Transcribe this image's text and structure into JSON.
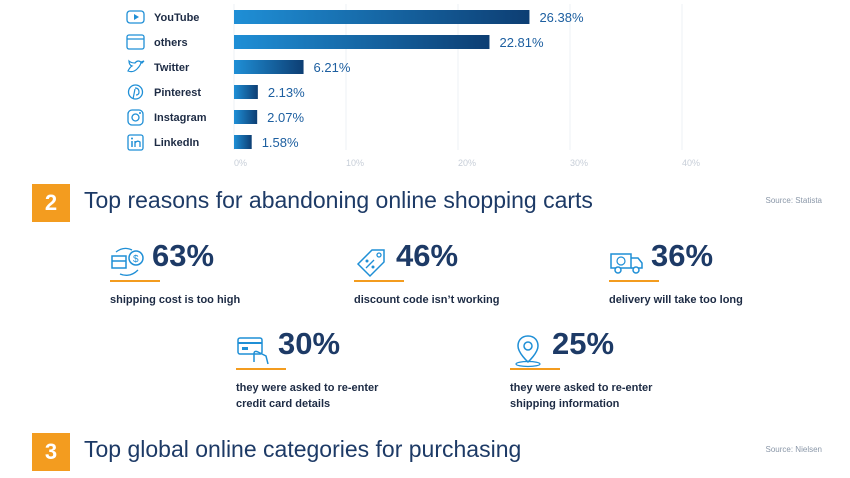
{
  "chart_data": {
    "type": "bar",
    "orientation": "horizontal",
    "categories": [
      "YouTube",
      "others",
      "Twitter",
      "Pinterest",
      "Instagram",
      "LinkedIn"
    ],
    "values": [
      26.38,
      22.81,
      6.21,
      2.13,
      2.07,
      1.58
    ],
    "value_labels": [
      "26.38%",
      "22.81%",
      "6.21%",
      "2.13%",
      "2.07%",
      "1.58%"
    ],
    "icons": [
      "youtube-icon",
      "others-icon",
      "twitter-icon",
      "pinterest-icon",
      "instagram-icon",
      "linkedin-icon"
    ],
    "xticks": [
      0,
      10,
      20,
      30,
      40
    ],
    "xtick_labels": [
      "0%",
      "10%",
      "20%",
      "30%",
      "40%"
    ],
    "xlim": [
      0,
      40
    ],
    "grid": true,
    "colors": {
      "bar_start": "#1f8fd6",
      "bar_end": "#0d3e73",
      "label": "#1d5fa0",
      "tick": "#c7ced8"
    }
  },
  "section2": {
    "number": "2",
    "title": "Top reasons for abandoning online shopping carts",
    "source": "Source: Statista",
    "stats": [
      {
        "pct": "63%",
        "desc": "shipping cost is too high",
        "icon": "shipping-cost-icon"
      },
      {
        "pct": "46%",
        "desc": "discount code isn’t working",
        "icon": "discount-tag-icon"
      },
      {
        "pct": "36%",
        "desc": "delivery will take too long",
        "icon": "delivery-truck-icon"
      },
      {
        "pct": "30%",
        "desc": "they were asked to re-enter\ncredit card details",
        "icon": "credit-card-icon"
      },
      {
        "pct": "25%",
        "desc": "they were asked to re-enter\nshipping information",
        "icon": "location-pin-icon"
      }
    ]
  },
  "section3": {
    "number": "3",
    "title": "Top global online categories for purchasing",
    "source": "Source:  Nielsen"
  },
  "colors": {
    "accent": "#f39c1f",
    "navy": "#1d3a66",
    "icon": "#1f8fd6"
  }
}
